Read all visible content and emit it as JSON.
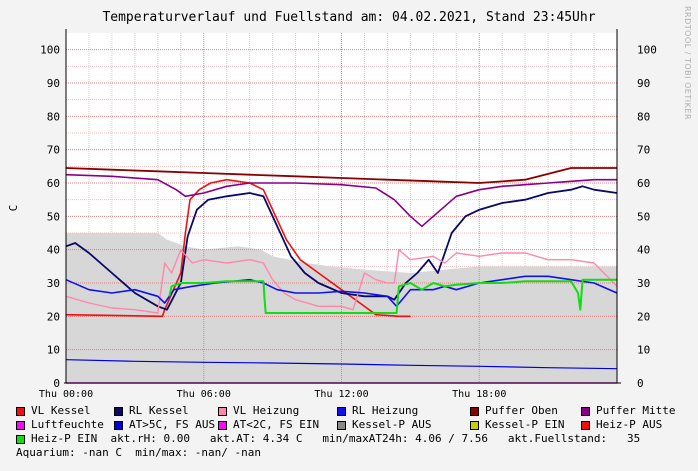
{
  "chart_data": {
    "type": "line",
    "title": "Temperaturverlauf und Fuellstand am: 04.02.2021, Stand 23:45Uhr",
    "ylabel": "C",
    "ylim": [
      0,
      105
    ],
    "yticks": [
      0,
      10,
      20,
      30,
      40,
      50,
      60,
      70,
      80,
      90,
      100
    ],
    "xlim": [
      0,
      24
    ],
    "xticks": [
      {
        "h": 0,
        "label": "Thu 00:00"
      },
      {
        "h": 6,
        "label": "Thu 06:00"
      },
      {
        "h": 12,
        "label": "Thu 12:00"
      },
      {
        "h": 18,
        "label": "Thu 18:00"
      }
    ],
    "grid": true,
    "area": {
      "name": "akt.Fuellstand",
      "color": "#d7d7d7",
      "points": [
        [
          0,
          45
        ],
        [
          4,
          45
        ],
        [
          4.4,
          43
        ],
        [
          5.2,
          41
        ],
        [
          6,
          40
        ],
        [
          7.5,
          41
        ],
        [
          8.5,
          40
        ],
        [
          9,
          38
        ],
        [
          10.5,
          36
        ],
        [
          11.5,
          35
        ],
        [
          13,
          34
        ],
        [
          15,
          33
        ],
        [
          16.5,
          34
        ],
        [
          18,
          35
        ],
        [
          20,
          35
        ],
        [
          22,
          35
        ],
        [
          24,
          35
        ]
      ]
    },
    "series": [
      {
        "name": "VL Kessel",
        "color": "#ee1111",
        "width": 1.6,
        "points": [
          [
            0,
            20.5
          ],
          [
            4.2,
            20
          ],
          [
            4.3,
            22
          ],
          [
            5,
            33
          ],
          [
            5.2,
            45
          ],
          [
            5.4,
            55
          ],
          [
            5.8,
            58
          ],
          [
            6.3,
            60
          ],
          [
            7,
            61
          ],
          [
            8,
            60
          ],
          [
            8.6,
            58
          ],
          [
            9,
            52
          ],
          [
            9.6,
            43
          ],
          [
            10.2,
            37
          ],
          [
            11,
            33
          ],
          [
            12,
            28
          ],
          [
            12.8,
            24
          ],
          [
            13.5,
            20.5
          ],
          [
            14.5,
            20
          ],
          [
            15,
            20
          ]
        ]
      },
      {
        "name": "RL Kessel",
        "color": "#0a0a66",
        "width": 1.8,
        "points": [
          [
            0,
            41
          ],
          [
            0.4,
            42
          ],
          [
            1,
            39
          ],
          [
            2,
            33
          ],
          [
            3,
            27
          ],
          [
            4,
            23
          ],
          [
            4.4,
            22
          ],
          [
            5,
            30
          ],
          [
            5.3,
            44
          ],
          [
            5.7,
            52
          ],
          [
            6.2,
            55
          ],
          [
            7,
            56
          ],
          [
            8,
            57
          ],
          [
            8.6,
            56
          ],
          [
            9.2,
            47
          ],
          [
            9.8,
            38
          ],
          [
            10.4,
            33
          ],
          [
            11,
            30
          ],
          [
            12,
            27
          ],
          [
            13,
            26
          ],
          [
            14,
            26
          ],
          [
            14.3,
            25
          ],
          [
            14.8,
            30
          ],
          [
            15.3,
            33
          ],
          [
            15.8,
            37
          ],
          [
            16.2,
            33
          ],
          [
            16.8,
            45
          ],
          [
            17.4,
            50
          ],
          [
            18,
            52
          ],
          [
            19,
            54
          ],
          [
            20,
            55
          ],
          [
            21,
            57
          ],
          [
            22,
            58
          ],
          [
            22.5,
            59
          ],
          [
            23,
            58
          ],
          [
            24,
            57
          ]
        ]
      },
      {
        "name": "VL Heizung",
        "color": "#ff88aa",
        "width": 1.4,
        "points": [
          [
            0,
            26
          ],
          [
            1,
            24
          ],
          [
            2,
            22.5
          ],
          [
            3,
            22
          ],
          [
            4,
            21
          ],
          [
            4.3,
            36
          ],
          [
            4.6,
            33
          ],
          [
            5,
            40
          ],
          [
            5.5,
            36
          ],
          [
            6,
            37
          ],
          [
            7,
            36
          ],
          [
            8,
            37
          ],
          [
            8.6,
            36
          ],
          [
            9,
            31
          ],
          [
            9.5,
            27
          ],
          [
            10,
            25
          ],
          [
            11,
            23
          ],
          [
            12,
            23
          ],
          [
            12.5,
            22
          ],
          [
            13,
            33
          ],
          [
            13.5,
            31
          ],
          [
            14,
            30
          ],
          [
            14.3,
            30
          ],
          [
            14.5,
            40
          ],
          [
            15,
            37
          ],
          [
            16,
            38
          ],
          [
            16.5,
            36
          ],
          [
            17,
            39
          ],
          [
            18,
            38
          ],
          [
            19,
            39
          ],
          [
            20,
            39
          ],
          [
            21,
            37
          ],
          [
            22,
            37
          ],
          [
            23,
            36
          ],
          [
            24,
            29
          ]
        ]
      },
      {
        "name": "RL Heizung",
        "color": "#1111ee",
        "width": 1.6,
        "points": [
          [
            0,
            31
          ],
          [
            1,
            28
          ],
          [
            2,
            27
          ],
          [
            3,
            28
          ],
          [
            4,
            26
          ],
          [
            4.3,
            24
          ],
          [
            4.7,
            28
          ],
          [
            5.5,
            29
          ],
          [
            6.5,
            30
          ],
          [
            8,
            31
          ],
          [
            8.6,
            30
          ],
          [
            9.2,
            28
          ],
          [
            10,
            27
          ],
          [
            11,
            27
          ],
          [
            12,
            27.5
          ],
          [
            13,
            27
          ],
          [
            14,
            26
          ],
          [
            14.4,
            23
          ],
          [
            15,
            28
          ],
          [
            16,
            28
          ],
          [
            16.5,
            29
          ],
          [
            17,
            28
          ],
          [
            18,
            30
          ],
          [
            19,
            31
          ],
          [
            20,
            32
          ],
          [
            21,
            32
          ],
          [
            22,
            31
          ],
          [
            23,
            30
          ],
          [
            24,
            27
          ]
        ]
      },
      {
        "name": "Puffer Oben",
        "color": "#880000",
        "width": 1.8,
        "points": [
          [
            0,
            64.5
          ],
          [
            2,
            64
          ],
          [
            4,
            63.5
          ],
          [
            6,
            63
          ],
          [
            8,
            62.5
          ],
          [
            10,
            62
          ],
          [
            12,
            61.5
          ],
          [
            14,
            61
          ],
          [
            16,
            60.5
          ],
          [
            18,
            60
          ],
          [
            20,
            61
          ],
          [
            22,
            64.5
          ],
          [
            24,
            64.5
          ]
        ]
      },
      {
        "name": "Puffer Mitte",
        "color": "#880088",
        "width": 1.6,
        "points": [
          [
            0,
            62.5
          ],
          [
            2,
            62
          ],
          [
            4,
            61
          ],
          [
            4.8,
            58
          ],
          [
            5.2,
            56
          ],
          [
            6,
            57
          ],
          [
            7,
            59
          ],
          [
            8,
            60
          ],
          [
            10,
            60
          ],
          [
            12,
            59.5
          ],
          [
            13.5,
            58.5
          ],
          [
            14.3,
            55
          ],
          [
            15,
            50
          ],
          [
            15.5,
            47
          ],
          [
            16,
            50
          ],
          [
            16.5,
            53
          ],
          [
            17,
            56
          ],
          [
            18,
            58
          ],
          [
            19,
            59
          ],
          [
            20,
            59.5
          ],
          [
            21,
            60
          ],
          [
            22,
            60.5
          ],
          [
            23,
            61
          ],
          [
            24,
            61
          ]
        ]
      },
      {
        "name": "Luftfeuchte",
        "color": "#ee11ee",
        "width": 1.6,
        "points": [
          [
            0,
            0
          ],
          [
            24,
            0
          ]
        ]
      },
      {
        "name": "AT>5C, FS AUS",
        "color": "#0000dd",
        "width": 1.2,
        "points": [
          [
            0,
            7
          ],
          [
            3,
            6.5
          ],
          [
            6,
            6.2
          ],
          [
            9,
            6
          ],
          [
            12,
            5.7
          ],
          [
            15,
            5.3
          ],
          [
            18,
            5
          ],
          [
            21,
            4.6
          ],
          [
            24,
            4.3
          ]
        ]
      },
      {
        "name": "AT<2C, FS EIN",
        "color": "#ee11ee",
        "width": 1.0,
        "points": []
      },
      {
        "name": "Kessel-P AUS",
        "color": "#888888",
        "width": 1.0,
        "points": []
      },
      {
        "name": "Kessel-P EIN",
        "color": "#cccc00",
        "width": 1.0,
        "points": []
      },
      {
        "name": "Heiz-P AUS",
        "color": "#ee1111",
        "width": 1.0,
        "points": []
      },
      {
        "name": "Heiz-P EIN",
        "color": "#11dd11",
        "width": 2.0,
        "points": [
          [
            4.5,
            26
          ],
          [
            4.6,
            29
          ],
          [
            5,
            30
          ],
          [
            6,
            30
          ],
          [
            7,
            30.5
          ],
          [
            8,
            30.5
          ],
          [
            8.6,
            30.5
          ],
          [
            8.65,
            25
          ],
          [
            8.7,
            21
          ],
          [
            14.4,
            21
          ],
          [
            14.5,
            29
          ],
          [
            15,
            30
          ],
          [
            15.5,
            28
          ],
          [
            16,
            30
          ],
          [
            16.5,
            29
          ],
          [
            17,
            29.5
          ],
          [
            18,
            30
          ],
          [
            19,
            30
          ],
          [
            20,
            30.5
          ],
          [
            21,
            30.5
          ],
          [
            22,
            30.5
          ],
          [
            22.3,
            27
          ],
          [
            22.4,
            22
          ],
          [
            22.5,
            31
          ],
          [
            23,
            31
          ],
          [
            24,
            31
          ]
        ]
      }
    ]
  },
  "legend": {
    "row1": [
      {
        "label": "VL Kessel",
        "color": "#ee1111"
      },
      {
        "label": "RL Kessel",
        "color": "#0a0a66"
      },
      {
        "label": "VL Heizung",
        "color": "#ff88aa"
      },
      {
        "label": "RL Heizung",
        "color": "#1111ee"
      },
      {
        "label": "Puffer Oben",
        "color": "#880000"
      },
      {
        "label": "Puffer Mitte",
        "color": "#880088"
      }
    ],
    "row2": [
      {
        "label": "Luftfeuchte",
        "color": "#ee11ee"
      },
      {
        "label": "AT>5C, FS AUS",
        "color": "#0000dd"
      },
      {
        "label": "AT<2C, FS EIN",
        "color": "#ee11ee"
      },
      {
        "label": "Kessel-P AUS",
        "color": "#888888"
      },
      {
        "label": "Kessel-P EIN",
        "color": "#cccc00"
      },
      {
        "label": "Heiz-P AUS",
        "color": "#ee1111"
      }
    ],
    "row3_item": {
      "label": "Heiz-P EIN",
      "color": "#11dd11"
    },
    "row3_text": "  akt.rH: 0.00   akt.AT: 4.34 C   min/maxAT24h: 4.06 / 7.56   akt.Fuellstand:   35",
    "row4_text": "Aquarium: -nan C  min/max: -nan/ -nan"
  },
  "watermark": "RRDTOOL / TOBI OETIKER"
}
